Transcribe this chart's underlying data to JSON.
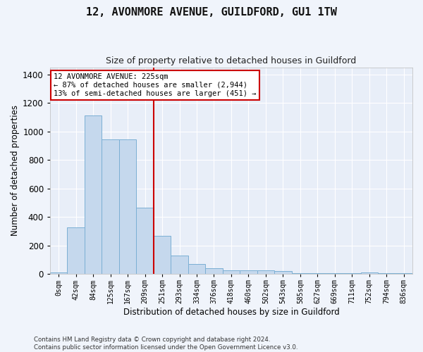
{
  "title": "12, AVONMORE AVENUE, GUILDFORD, GU1 1TW",
  "subtitle": "Size of property relative to detached houses in Guildford",
  "xlabel": "Distribution of detached houses by size in Guildford",
  "ylabel": "Number of detached properties",
  "bar_color": "#c5d8ed",
  "bar_edge_color": "#7bafd4",
  "background_color": "#e8eef8",
  "grid_color": "#ffffff",
  "fig_background": "#f0f4fb",
  "categories": [
    "0sqm",
    "42sqm",
    "84sqm",
    "125sqm",
    "167sqm",
    "209sqm",
    "251sqm",
    "293sqm",
    "334sqm",
    "376sqm",
    "418sqm",
    "460sqm",
    "502sqm",
    "543sqm",
    "585sqm",
    "627sqm",
    "669sqm",
    "711sqm",
    "752sqm",
    "794sqm",
    "836sqm"
  ],
  "values": [
    10,
    325,
    1110,
    945,
    945,
    465,
    270,
    130,
    70,
    40,
    25,
    25,
    25,
    20,
    5,
    5,
    5,
    5,
    13,
    5,
    5
  ],
  "ylim": [
    0,
    1450
  ],
  "yticks": [
    0,
    200,
    400,
    600,
    800,
    1000,
    1200,
    1400
  ],
  "vline_x": 5.5,
  "vline_color": "#cc0000",
  "annotation_text": "12 AVONMORE AVENUE: 225sqm\n← 87% of detached houses are smaller (2,944)\n13% of semi-detached houses are larger (451) →",
  "annotation_box_color": "#ffffff",
  "annotation_box_edge": "#cc0000",
  "footer_text": "Contains HM Land Registry data © Crown copyright and database right 2024.\nContains public sector information licensed under the Open Government Licence v3.0.",
  "figsize": [
    6.0,
    5.0
  ],
  "dpi": 100
}
